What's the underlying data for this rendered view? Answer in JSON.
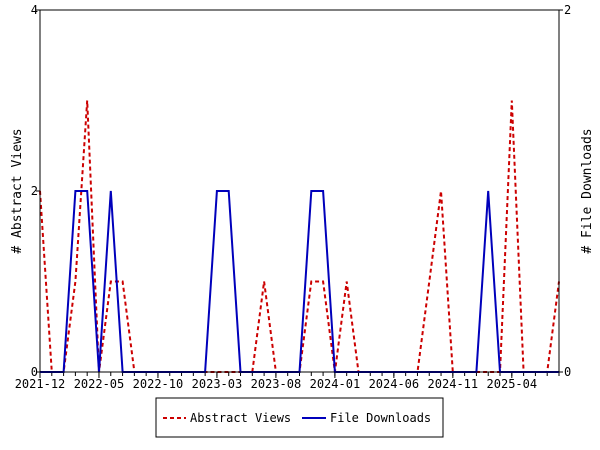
{
  "chart_data": {
    "type": "line",
    "x": [
      "2021-12",
      "2022-01",
      "2022-02",
      "2022-03",
      "2022-04",
      "2022-05",
      "2022-06",
      "2022-07",
      "2022-08",
      "2022-09",
      "2022-10",
      "2022-11",
      "2022-12",
      "2023-01",
      "2023-02",
      "2023-03",
      "2023-04",
      "2023-05",
      "2023-06",
      "2023-07",
      "2023-08",
      "2023-09",
      "2023-10",
      "2023-11",
      "2023-12",
      "2024-01",
      "2024-02",
      "2024-03",
      "2024-04",
      "2024-05",
      "2024-06",
      "2024-07",
      "2024-08",
      "2024-09",
      "2024-10",
      "2024-11",
      "2024-12",
      "2025-01",
      "2025-02",
      "2025-03",
      "2025-04",
      "2025-05",
      "2025-06",
      "2025-07",
      "2025-08"
    ],
    "x_tick_labels": [
      "2021-12",
      "2022-05",
      "2022-10",
      "2023-03",
      "2023-08",
      "2024-01",
      "2024-06",
      "2024-11",
      "2025-04"
    ],
    "series": [
      {
        "name": "Abstract Views",
        "axis": "left",
        "color": "#cc0000",
        "style": "dashed",
        "values": [
          2,
          0,
          0,
          1,
          3,
          0,
          1,
          1,
          0,
          0,
          0,
          0,
          0,
          0,
          0,
          0,
          0,
          0,
          0,
          1,
          0,
          0,
          0,
          1,
          1,
          0,
          1,
          0,
          0,
          0,
          0,
          0,
          0,
          1,
          2,
          0,
          0,
          0,
          0,
          0,
          3,
          0,
          0,
          0,
          1
        ]
      },
      {
        "name": "File Downloads",
        "axis": "right",
        "color": "#0000bb",
        "style": "solid",
        "values": [
          0,
          0,
          0,
          1,
          1,
          0,
          1,
          0,
          0,
          0,
          0,
          0,
          0,
          0,
          0,
          1,
          1,
          0,
          0,
          0,
          0,
          0,
          0,
          1,
          1,
          0,
          0,
          0,
          0,
          0,
          0,
          0,
          0,
          0,
          0,
          0,
          0,
          0,
          1,
          0,
          0,
          0,
          0,
          0,
          0
        ]
      }
    ],
    "ylabel": "# Abstract Views",
    "y2label": "# File Downloads",
    "ylim": [
      0,
      4
    ],
    "y2lim": [
      0,
      2
    ],
    "y_ticks": [
      "0",
      "2",
      "4"
    ],
    "y2_ticks": [
      "0",
      "2"
    ],
    "legend_position": "bottom-center",
    "grid": false
  }
}
